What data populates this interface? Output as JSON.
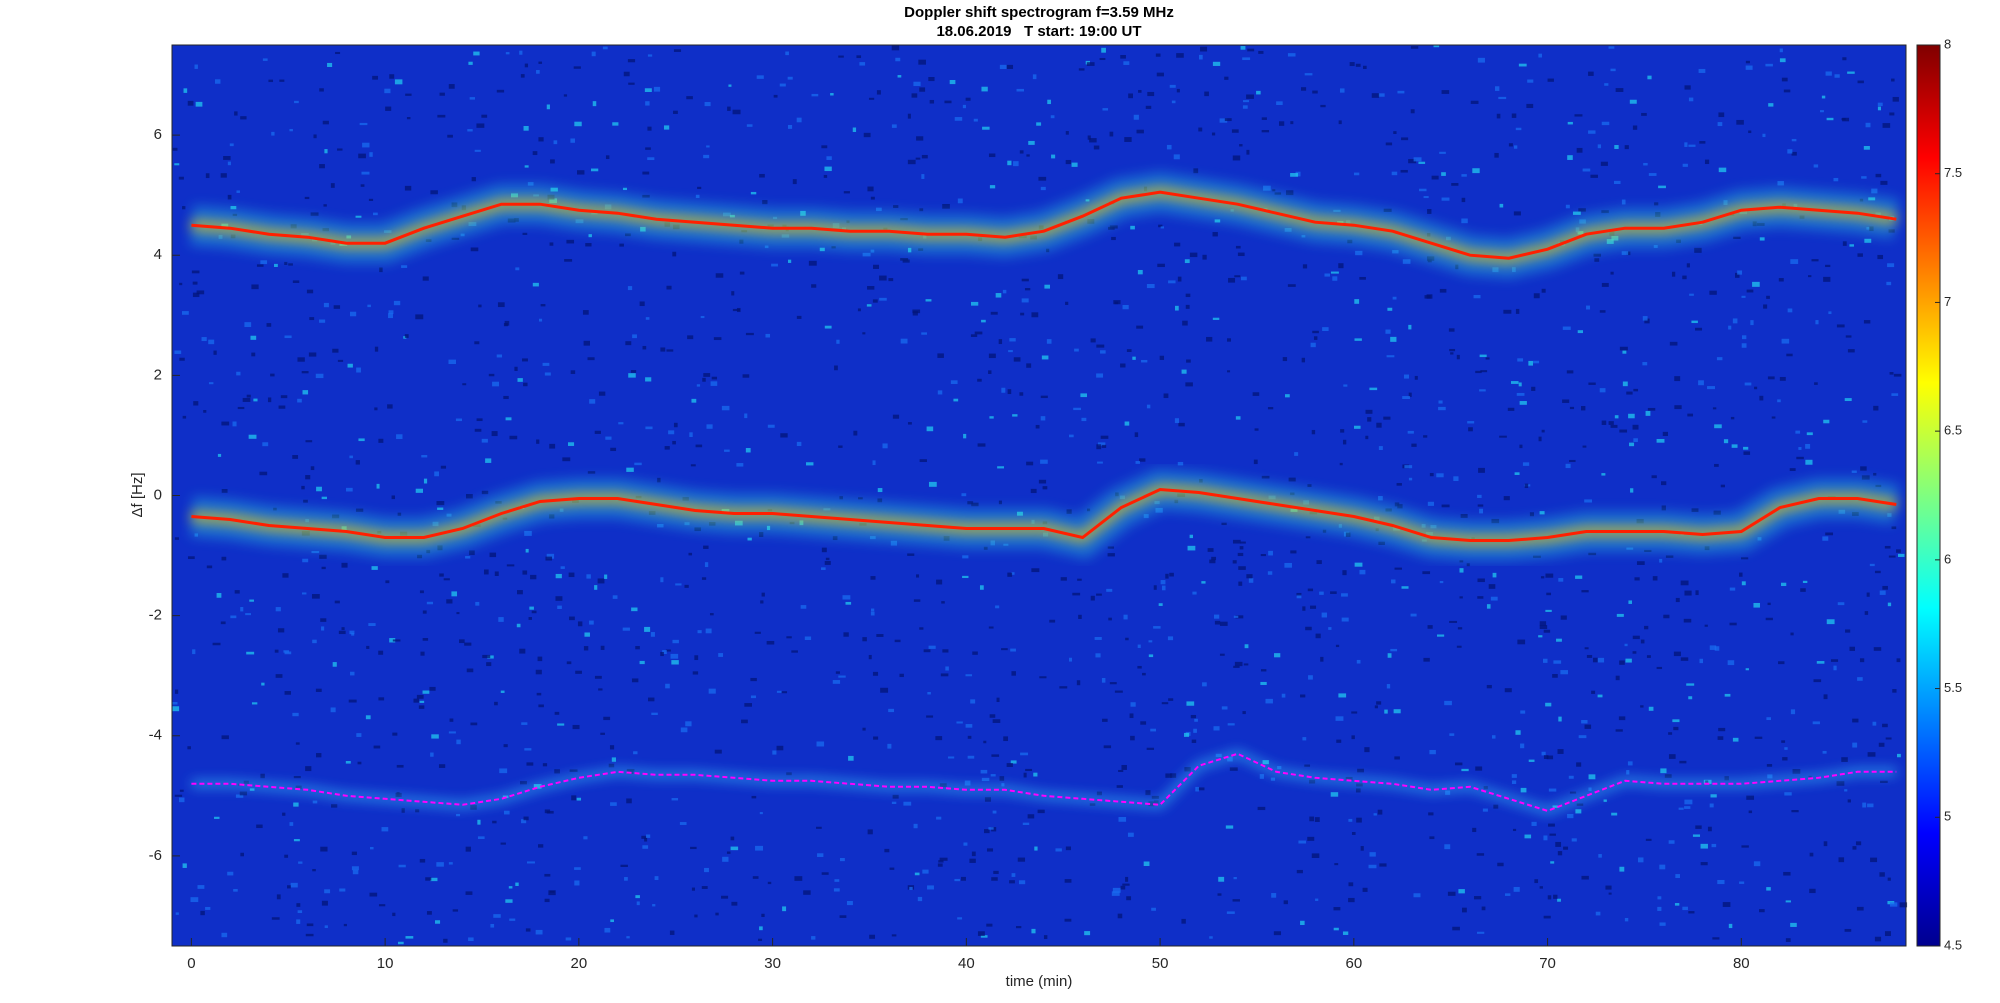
{
  "chart_data": {
    "type": "spectrogram",
    "title": "Doppler shift spectrogram f=3.59 MHz",
    "subtitle": "18.06.2019   T start: 19:00 UT",
    "x_label": "time (min)",
    "y_label": "Δf [Hz]",
    "xlim": [
      -1,
      88.5
    ],
    "ylim": [
      -7.5,
      7.5
    ],
    "xticks": [
      0,
      10,
      20,
      30,
      40,
      50,
      60,
      70,
      80
    ],
    "yticks": [
      -6,
      -4,
      -2,
      0,
      2,
      4,
      6
    ],
    "colormap": "jet",
    "background_color": "#0f2fc8",
    "clim": [
      4.5,
      8
    ],
    "colorbar_ticks": [
      4.5,
      5,
      5.5,
      6,
      6.5,
      7,
      7.5,
      8
    ],
    "x": [
      0,
      2,
      4,
      6,
      8,
      10,
      12,
      14,
      16,
      18,
      20,
      22,
      24,
      26,
      28,
      30,
      32,
      34,
      36,
      38,
      40,
      42,
      44,
      46,
      48,
      50,
      52,
      54,
      56,
      58,
      60,
      62,
      64,
      66,
      68,
      70,
      72,
      74,
      76,
      78,
      80,
      82,
      84,
      86,
      88
    ],
    "traces": [
      {
        "color": "#ff2000",
        "values": [
          4.5,
          4.45,
          4.35,
          4.3,
          4.2,
          4.2,
          4.45,
          4.65,
          4.85,
          4.85,
          4.75,
          4.7,
          4.6,
          4.55,
          4.5,
          4.45,
          4.45,
          4.4,
          4.4,
          4.35,
          4.35,
          4.3,
          4.4,
          4.65,
          4.95,
          5.05,
          4.95,
          4.85,
          4.7,
          4.55,
          4.5,
          4.4,
          4.2,
          4.0,
          3.95,
          4.1,
          4.35,
          4.45,
          4.45,
          4.55,
          4.75,
          4.8,
          4.75,
          4.7,
          4.6
        ]
      },
      {
        "color": "#ff2000",
        "values": [
          -0.35,
          -0.4,
          -0.5,
          -0.55,
          -0.6,
          -0.7,
          -0.7,
          -0.55,
          -0.3,
          -0.1,
          -0.05,
          -0.05,
          -0.15,
          -0.25,
          -0.3,
          -0.3,
          -0.35,
          -0.4,
          -0.45,
          -0.5,
          -0.55,
          -0.55,
          -0.55,
          -0.7,
          -0.2,
          0.1,
          0.05,
          -0.05,
          -0.15,
          -0.25,
          -0.35,
          -0.5,
          -0.7,
          -0.75,
          -0.75,
          -0.7,
          -0.6,
          -0.6,
          -0.6,
          -0.65,
          -0.6,
          -0.2,
          -0.05,
          -0.05,
          -0.15
        ]
      },
      {
        "color": "#ff00ff",
        "values": [
          -4.8,
          -4.8,
          -4.85,
          -4.9,
          -5.0,
          -5.05,
          -5.1,
          -5.15,
          -5.05,
          -4.85,
          -4.7,
          -4.6,
          -4.65,
          -4.65,
          -4.7,
          -4.75,
          -4.75,
          -4.8,
          -4.85,
          -4.85,
          -4.9,
          -4.9,
          -5.0,
          -5.05,
          -5.1,
          -5.15,
          -4.5,
          -4.3,
          -4.6,
          -4.7,
          -4.75,
          -4.8,
          -4.9,
          -4.85,
          -5.05,
          -5.25,
          -5.0,
          -4.75,
          -4.8,
          -4.8,
          -4.8,
          -4.75,
          -4.7,
          -4.6,
          -4.6
        ]
      }
    ]
  }
}
